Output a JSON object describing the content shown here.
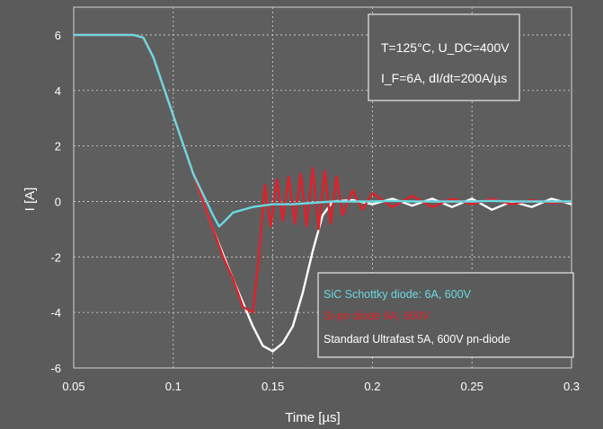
{
  "chart_data": {
    "type": "line",
    "xlabel": "Time [µs]",
    "ylabel": "I [A]",
    "xlim": [
      0.05,
      0.3
    ],
    "ylim": [
      -6,
      7
    ],
    "x_ticks": [
      "0.05",
      "0.1",
      "0.15",
      "0.2",
      "0.25",
      "0.3"
    ],
    "x_tick_values": [
      0.05,
      0.1,
      0.15,
      0.2,
      0.25,
      0.3
    ],
    "y_ticks": [
      "6",
      "4",
      "2",
      "0",
      "-2",
      "-4",
      "-6"
    ],
    "y_tick_values": [
      6,
      4,
      2,
      0,
      -2,
      -4,
      -6
    ],
    "grid": true,
    "conditions": {
      "line1": "T=125°C, U_DC=400V",
      "line2": "I_F=6A, dI/dt=200A/µs"
    },
    "legend_position": "bottom-right",
    "series": [
      {
        "name": "Standard Ultrafast 5A, 600V pn-diode",
        "color": "#ffffff",
        "x": [
          0.05,
          0.08,
          0.085,
          0.09,
          0.1,
          0.11,
          0.12,
          0.13,
          0.14,
          0.145,
          0.15,
          0.155,
          0.16,
          0.165,
          0.17,
          0.175,
          0.18,
          0.19,
          0.2,
          0.21,
          0.22,
          0.23,
          0.24,
          0.25,
          0.26,
          0.27,
          0.28,
          0.29,
          0.3
        ],
        "y": [
          6.0,
          6.0,
          5.9,
          5.2,
          3.1,
          1.0,
          -1.0,
          -2.8,
          -4.5,
          -5.2,
          -5.4,
          -5.1,
          -4.5,
          -3.3,
          -1.8,
          -0.5,
          0.0,
          0.05,
          -0.1,
          0.1,
          -0.15,
          0.1,
          -0.2,
          0.1,
          -0.3,
          0.0,
          -0.2,
          0.1,
          -0.1
        ]
      },
      {
        "name": "Si-pn diode 6A, 600V",
        "color": "#e0202a",
        "x": [
          0.05,
          0.08,
          0.085,
          0.09,
          0.1,
          0.11,
          0.12,
          0.125,
          0.13,
          0.135,
          0.14,
          0.143,
          0.146,
          0.149,
          0.152,
          0.155,
          0.158,
          0.161,
          0.164,
          0.167,
          0.17,
          0.173,
          0.176,
          0.179,
          0.182,
          0.185,
          0.19,
          0.195,
          0.2,
          0.21,
          0.22,
          0.23,
          0.24,
          0.25,
          0.26,
          0.27,
          0.28,
          0.29,
          0.3
        ],
        "y": [
          6.0,
          6.0,
          5.9,
          5.2,
          3.1,
          1.0,
          -1.0,
          -2.0,
          -2.8,
          -3.8,
          -4.0,
          -2.0,
          0.6,
          -0.9,
          0.8,
          -0.7,
          0.9,
          -0.8,
          1.0,
          -0.9,
          1.2,
          -1.0,
          1.1,
          -0.8,
          0.9,
          -0.5,
          0.4,
          -0.3,
          0.3,
          -0.2,
          0.2,
          -0.2,
          0.1,
          -0.1,
          0.1,
          -0.1,
          0.05,
          -0.05,
          0.0
        ]
      },
      {
        "name": "SiC Schottky diode: 6A, 600V",
        "color": "#6ad8e0",
        "x": [
          0.05,
          0.08,
          0.085,
          0.09,
          0.1,
          0.11,
          0.12,
          0.123,
          0.126,
          0.13,
          0.14,
          0.15,
          0.16,
          0.17,
          0.18,
          0.19,
          0.2,
          0.21,
          0.22,
          0.23,
          0.24,
          0.25,
          0.26,
          0.27,
          0.28,
          0.29,
          0.3
        ],
        "y": [
          6.0,
          6.0,
          5.9,
          5.2,
          3.1,
          1.0,
          -0.5,
          -0.9,
          -0.7,
          -0.4,
          -0.2,
          -0.1,
          -0.1,
          -0.05,
          0.0,
          0.0,
          0.0,
          0.02,
          0.0,
          0.0,
          0.0,
          0.0,
          0.02,
          0.0,
          0.0,
          0.0,
          0.0
        ]
      }
    ]
  }
}
